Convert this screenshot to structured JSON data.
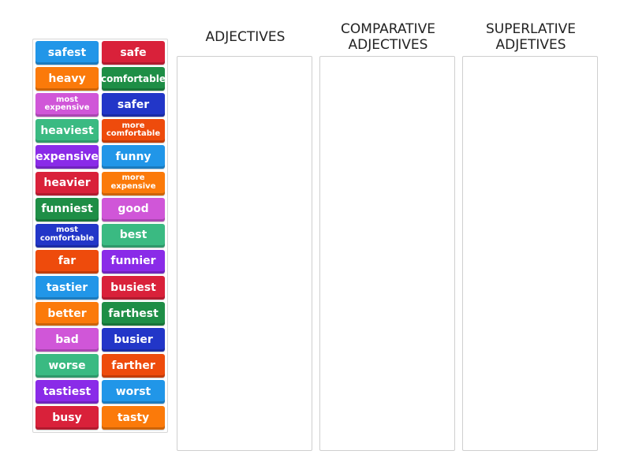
{
  "colors": {
    "blue": "#2196e8",
    "red": "#d9213a",
    "orange": "#fb7a0a",
    "green_dark": "#1e8e46",
    "magenta": "#d056d8",
    "navy": "#2236c8",
    "teal": "#3aba82",
    "orange_red": "#ee4b0c",
    "purple": "#8a2be8"
  },
  "tiles": [
    {
      "label": "safest",
      "color": "#2196e8",
      "size": "big"
    },
    {
      "label": "safe",
      "color": "#d9213a",
      "size": "big"
    },
    {
      "label": "heavy",
      "color": "#fb7a0a",
      "size": "big"
    },
    {
      "label": "comfortable",
      "color": "#1e8e46",
      "size": "mid"
    },
    {
      "label": "most expensive",
      "color": "#d056d8",
      "size": "small"
    },
    {
      "label": "safer",
      "color": "#2236c8",
      "size": "big"
    },
    {
      "label": "heaviest",
      "color": "#3aba82",
      "size": "big"
    },
    {
      "label": "more comfortable",
      "color": "#ee4b0c",
      "size": "small"
    },
    {
      "label": "expensive",
      "color": "#8a2be8",
      "size": "big"
    },
    {
      "label": "funny",
      "color": "#2196e8",
      "size": "big"
    },
    {
      "label": "heavier",
      "color": "#d9213a",
      "size": "big"
    },
    {
      "label": "more expensive",
      "color": "#fb7a0a",
      "size": "small"
    },
    {
      "label": "funniest",
      "color": "#1e8e46",
      "size": "big"
    },
    {
      "label": "good",
      "color": "#d056d8",
      "size": "big"
    },
    {
      "label": "most comfortable",
      "color": "#2236c8",
      "size": "small"
    },
    {
      "label": "best",
      "color": "#3aba82",
      "size": "big"
    },
    {
      "label": "far",
      "color": "#ee4b0c",
      "size": "big"
    },
    {
      "label": "funnier",
      "color": "#8a2be8",
      "size": "big"
    },
    {
      "label": "tastier",
      "color": "#2196e8",
      "size": "big"
    },
    {
      "label": "busiest",
      "color": "#d9213a",
      "size": "big"
    },
    {
      "label": "better",
      "color": "#fb7a0a",
      "size": "big"
    },
    {
      "label": "farthest",
      "color": "#1e8e46",
      "size": "big"
    },
    {
      "label": "bad",
      "color": "#d056d8",
      "size": "big"
    },
    {
      "label": "busier",
      "color": "#2236c8",
      "size": "big"
    },
    {
      "label": "worse",
      "color": "#3aba82",
      "size": "big"
    },
    {
      "label": "farther",
      "color": "#ee4b0c",
      "size": "big"
    },
    {
      "label": "tastiest",
      "color": "#8a2be8",
      "size": "big"
    },
    {
      "label": "worst",
      "color": "#2196e8",
      "size": "big"
    },
    {
      "label": "busy",
      "color": "#d9213a",
      "size": "big"
    },
    {
      "label": "tasty",
      "color": "#fb7a0a",
      "size": "big"
    }
  ],
  "columns": [
    {
      "title_line1": "ADJECTIVES",
      "title_line2": ""
    },
    {
      "title_line1": "COMPARATIVE",
      "title_line2": "ADJECTIVES"
    },
    {
      "title_line1": "SUPERLATIVE",
      "title_line2": "ADJETIVES"
    }
  ]
}
